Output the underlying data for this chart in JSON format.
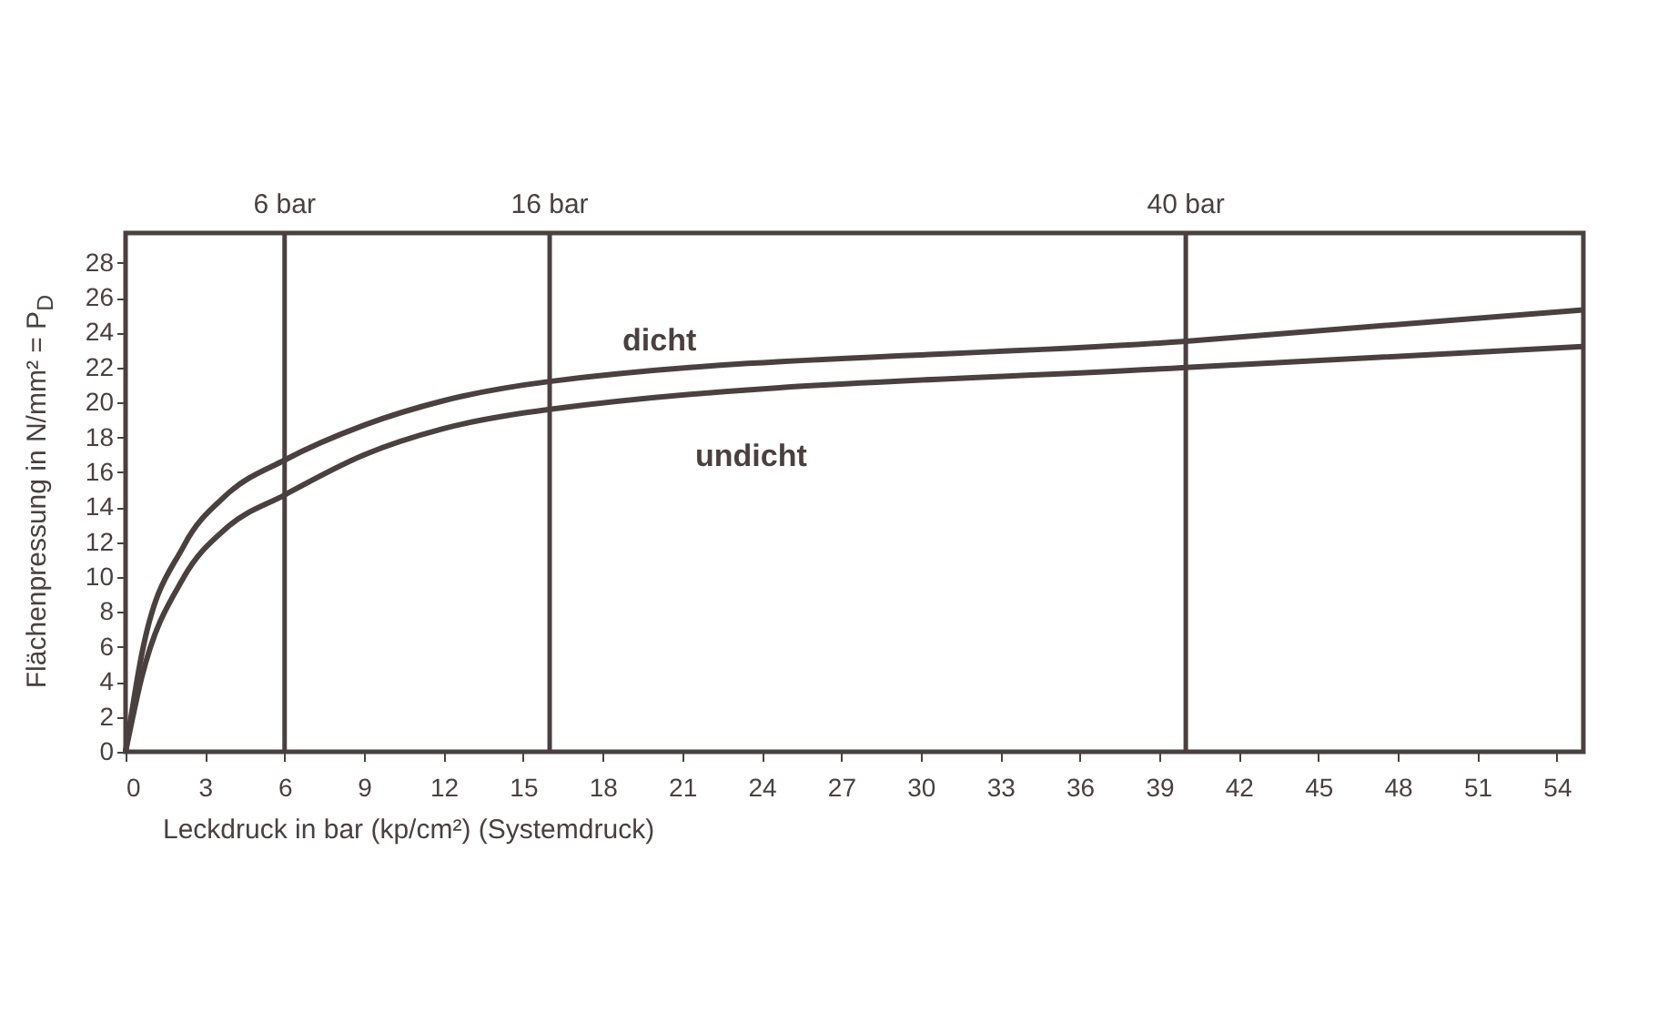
{
  "chart_data": {
    "type": "line",
    "ylabel": "Flächenpressung in N/mm² = P$_{D}$",
    "xlabel": "Leckdruck in bar (kp/cm²) (Systemdruck)",
    "x": [
      0,
      0.6,
      2.2,
      3.8,
      6,
      9,
      12,
      16,
      40,
      55
    ],
    "series": [
      {
        "name": "dicht",
        "color": "#4a4040",
        "values": [
          0,
          5.5,
          11.8,
          14.7,
          16.7,
          18.7,
          20.1,
          21.2,
          23.5,
          25.3
        ]
      },
      {
        "name": "undicht",
        "color": "#4a4040",
        "values": [
          0,
          4.2,
          10,
          12.8,
          14.7,
          17,
          18.5,
          19.6,
          22,
          23.2
        ]
      }
    ],
    "xlim": [
      0,
      55
    ],
    "ylim": [
      0,
      29.7
    ],
    "xticks": [
      0,
      3,
      6,
      9,
      12,
      15,
      18,
      21,
      24,
      27,
      30,
      33,
      36,
      39,
      42,
      45,
      48,
      51,
      54
    ],
    "yticks": [
      0,
      2,
      4,
      6,
      8,
      10,
      12,
      14,
      16,
      18,
      20,
      22,
      24,
      26,
      28
    ],
    "ref_lines": [
      {
        "axis": "x",
        "value": 6,
        "label": "6 bar"
      },
      {
        "axis": "x",
        "value": 16,
        "label": "16 bar"
      },
      {
        "axis": "x",
        "value": 40,
        "label": "40 bar"
      }
    ],
    "grid": false,
    "legend": false,
    "marker": "none",
    "line_style": "solid"
  }
}
